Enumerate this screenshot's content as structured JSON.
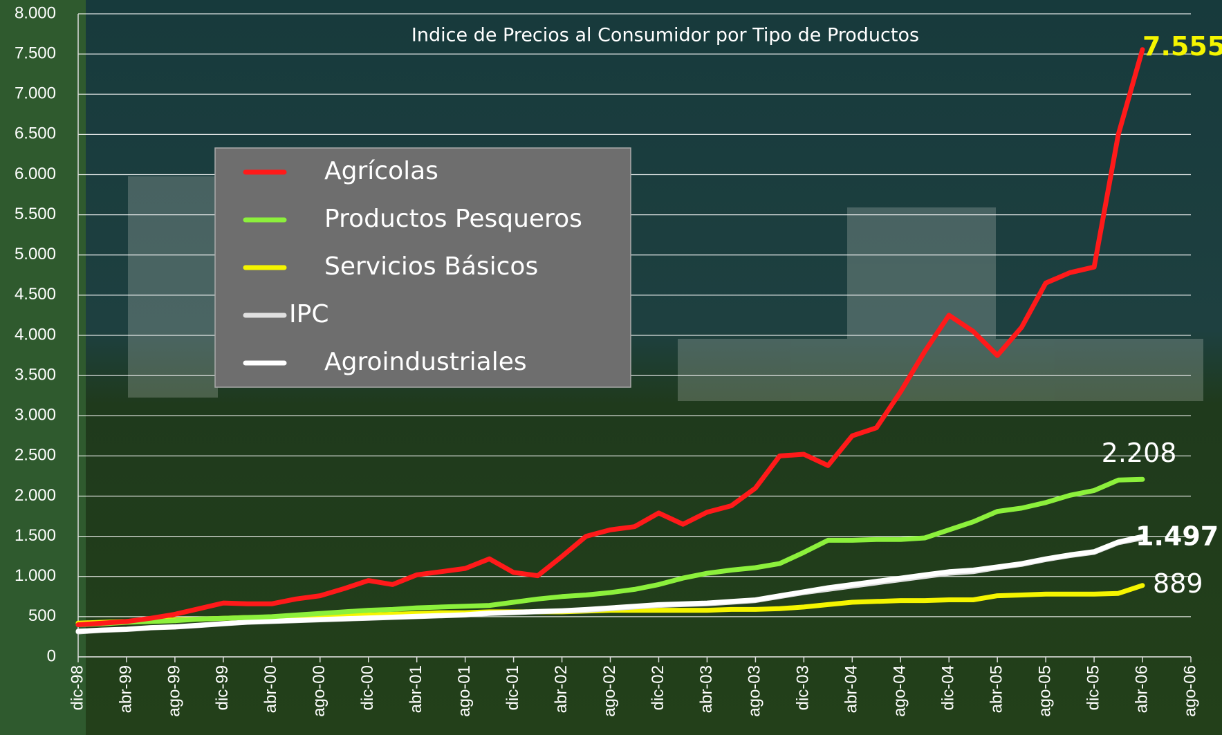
{
  "chart_data": {
    "type": "line",
    "title": "Indice de Precios al Consumidor por Tipo de Productos",
    "categories": [
      "dic-98",
      null,
      "abr-99",
      null,
      "ago-99",
      null,
      "dic-99",
      null,
      "abr-00",
      null,
      "ago-00",
      null,
      "dic-00",
      null,
      "abr-01",
      null,
      "ago-01",
      null,
      "dic-01",
      null,
      "abr-02",
      null,
      "ago-02",
      null,
      "dic-02",
      null,
      "abr-03",
      null,
      "ago-03",
      null,
      "dic-03",
      null,
      "abr-04",
      null,
      "ago-04",
      null,
      "dic-04",
      null,
      "abr-05",
      null,
      "ago-05",
      null,
      "dic-05",
      null,
      "abr-06",
      null,
      "ago-06"
    ],
    "series": [
      {
        "name": "Agrícolas",
        "color": "#ff1a1a",
        "values": [
          400,
          420,
          440,
          480,
          530,
          600,
          670,
          660,
          660,
          720,
          760,
          850,
          950,
          900,
          1020,
          1060,
          1100,
          1220,
          1050,
          1010,
          1250,
          1500,
          1580,
          1620,
          1790,
          1650,
          1800,
          1880,
          2100,
          2500,
          2520,
          2380,
          2750,
          2850,
          3300,
          3800,
          4250,
          4050,
          3750,
          4100,
          4650,
          4780,
          4850,
          6500,
          7555,
          null,
          null
        ],
        "value_labels": [
          null,
          null,
          null,
          null,
          null,
          null,
          null,
          null,
          null,
          null,
          null,
          null,
          null,
          null,
          null,
          null,
          null,
          null,
          null,
          null,
          null,
          null,
          null,
          null,
          null,
          null,
          null,
          null,
          null,
          null,
          null,
          null,
          null,
          null,
          null,
          null,
          null,
          null,
          null,
          null,
          null,
          null,
          null,
          null,
          "7.555",
          null,
          null
        ]
      },
      {
        "name": "Productos Pesqueros",
        "color": "#8cf03c",
        "values": [
          400,
          410,
          430,
          440,
          450,
          470,
          480,
          490,
          500,
          520,
          540,
          560,
          580,
          590,
          610,
          620,
          630,
          640,
          680,
          720,
          750,
          770,
          800,
          840,
          900,
          980,
          1040,
          1080,
          1110,
          1160,
          1300,
          1450,
          1450,
          1460,
          1460,
          1480,
          1580,
          1680,
          1810,
          1850,
          1920,
          2010,
          2070,
          2200,
          2208,
          null,
          null
        ],
        "value_labels": [
          null,
          null,
          null,
          null,
          null,
          null,
          null,
          null,
          null,
          null,
          null,
          null,
          null,
          null,
          null,
          null,
          null,
          null,
          null,
          null,
          null,
          null,
          null,
          null,
          null,
          null,
          null,
          null,
          null,
          null,
          null,
          null,
          null,
          null,
          null,
          null,
          null,
          null,
          null,
          null,
          null,
          null,
          null,
          null,
          "2.208",
          null,
          null
        ]
      },
      {
        "name": "Servicios Básicos",
        "color": "#f5f500",
        "values": [
          420,
          430,
          440,
          450,
          460,
          470,
          480,
          490,
          490,
          500,
          500,
          510,
          520,
          530,
          540,
          550,
          550,
          560,
          560,
          560,
          560,
          570,
          580,
          580,
          580,
          580,
          580,
          590,
          590,
          600,
          620,
          650,
          680,
          690,
          700,
          700,
          710,
          710,
          760,
          770,
          780,
          780,
          780,
          790,
          889,
          null,
          null
        ],
        "value_labels": [
          null,
          null,
          null,
          null,
          null,
          null,
          null,
          null,
          null,
          null,
          null,
          null,
          null,
          null,
          null,
          null,
          null,
          null,
          null,
          null,
          null,
          null,
          null,
          null,
          null,
          null,
          null,
          null,
          null,
          null,
          null,
          null,
          null,
          null,
          null,
          null,
          null,
          null,
          null,
          null,
          null,
          null,
          null,
          null,
          "889",
          null,
          null
        ]
      },
      {
        "name": "IPC",
        "color": "#e0e0e0",
        "values": [
          310,
          330,
          340,
          360,
          370,
          390,
          410,
          430,
          440,
          450,
          460,
          470,
          480,
          490,
          500,
          510,
          520,
          540,
          550,
          560,
          570,
          580,
          600,
          620,
          640,
          650,
          660,
          680,
          700,
          750,
          800,
          840,
          880,
          920,
          960,
          1000,
          1040,
          1060,
          1110,
          1150,
          1210,
          1260,
          1300,
          1420,
          1480,
          null,
          null
        ]
      },
      {
        "name": "Agroindustriales",
        "color": "#ffffff",
        "values": [
          320,
          335,
          345,
          365,
          375,
          395,
          415,
          432,
          445,
          455,
          465,
          475,
          485,
          495,
          505,
          515,
          525,
          545,
          555,
          565,
          575,
          590,
          610,
          630,
          650,
          660,
          670,
          690,
          710,
          760,
          810,
          860,
          900,
          940,
          980,
          1020,
          1060,
          1080,
          1120,
          1160,
          1220,
          1270,
          1310,
          1430,
          1497,
          null,
          null
        ],
        "value_labels": [
          null,
          null,
          null,
          null,
          null,
          null,
          null,
          null,
          null,
          null,
          null,
          null,
          null,
          null,
          null,
          null,
          null,
          null,
          null,
          null,
          null,
          null,
          null,
          null,
          null,
          null,
          null,
          null,
          null,
          null,
          null,
          null,
          null,
          null,
          null,
          null,
          null,
          null,
          null,
          null,
          null,
          null,
          null,
          null,
          "1.497",
          null,
          null
        ]
      }
    ],
    "ylim": [
      0,
      8000
    ],
    "yticks": [
      0,
      500,
      {
        "value": 1000,
        "label": "1.000"
      },
      {
        "value": 1500,
        "label": "1.500"
      },
      {
        "value": 2000,
        "label": "2.000"
      },
      {
        "value": 2500,
        "label": "2.500"
      },
      {
        "value": 3000,
        "label": "3.000"
      },
      {
        "value": 3500,
        "label": "3.500"
      },
      {
        "value": 4000,
        "label": "4.000"
      },
      {
        "value": 4500,
        "label": "4.500"
      },
      {
        "value": 5000,
        "label": "5.000"
      },
      {
        "value": 5500,
        "label": "5.500"
      },
      {
        "value": 6000,
        "label": "6.000"
      },
      {
        "value": 6500,
        "label": "6.500"
      },
      {
        "value": 7000,
        "label": "7.000"
      },
      {
        "value": 7500,
        "label": "7.500"
      },
      {
        "value": 8000,
        "label": "8.000"
      }
    ],
    "grid": true,
    "legend": "upper left"
  }
}
